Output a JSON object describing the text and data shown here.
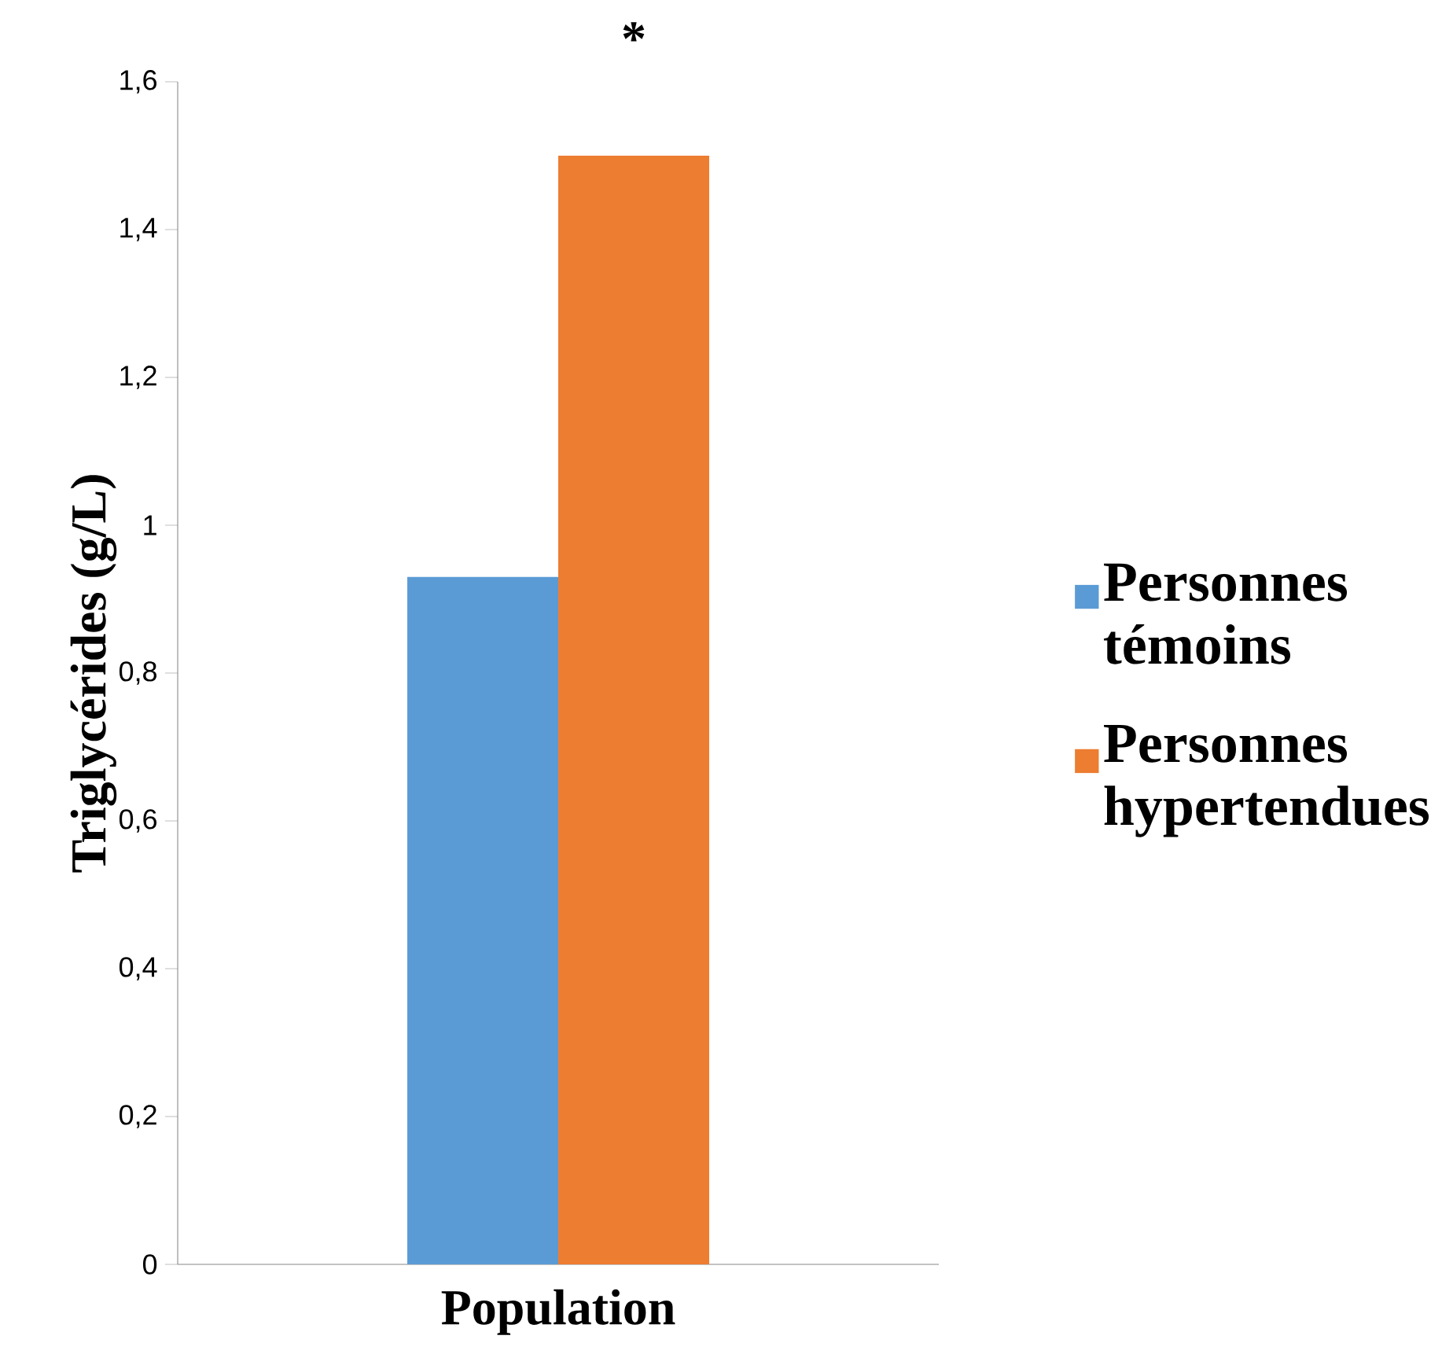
{
  "chart_data": {
    "type": "bar",
    "xlabel": "Population",
    "ylabel": "Triglycérides (g/L)",
    "categories": [
      null
    ],
    "series": [
      {
        "name": "Personnes témoins",
        "color": "#5b9bd5",
        "values": [
          0.93
        ]
      },
      {
        "name": "Personnes hypertendues",
        "color": "#ed7d31",
        "values": [
          1.5
        ]
      }
    ],
    "ylim": [
      0,
      1.6
    ],
    "yticks": [
      {
        "value": 0,
        "label": "0"
      },
      {
        "value": 0.2,
        "label": "0,2"
      },
      {
        "value": 0.4,
        "label": "0,4"
      },
      {
        "value": 0.6,
        "label": "0,6"
      },
      {
        "value": 0.8,
        "label": "0,8"
      },
      {
        "value": 1,
        "label": "1"
      },
      {
        "value": 1.2,
        "label": "1,2"
      },
      {
        "value": 1.4,
        "label": "1,4"
      },
      {
        "value": 1.6,
        "label": "1,6"
      }
    ],
    "annotations": [
      "*"
    ],
    "legend": "right",
    "grid": false
  }
}
